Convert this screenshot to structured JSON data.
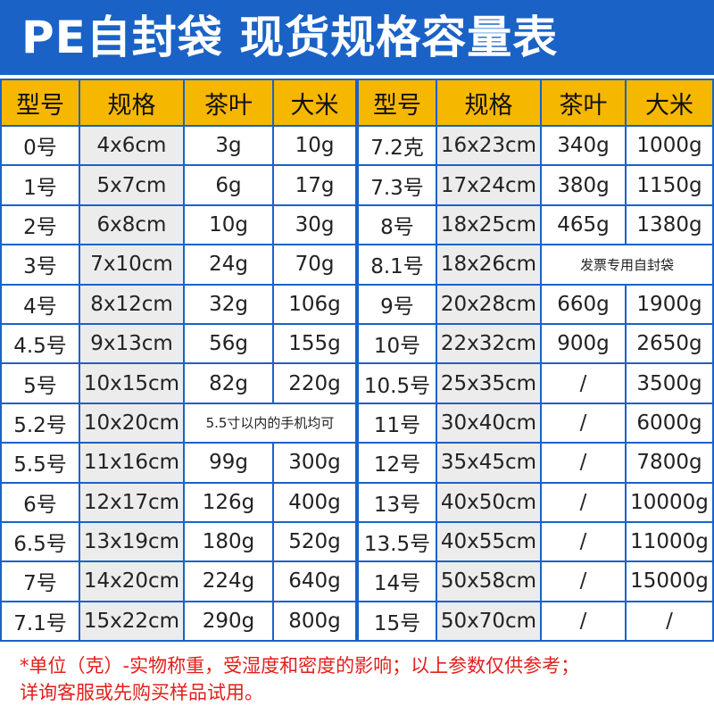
{
  "title": "PE自封袋 现货规格容量表",
  "left": {
    "headers": [
      "型号",
      "规格",
      "茶叶",
      "大米"
    ],
    "rows": [
      [
        "0号",
        "4x6cm",
        "3g",
        "10g"
      ],
      [
        "1号",
        "5x7cm",
        "6g",
        "17g"
      ],
      [
        "2号",
        "6x8cm",
        "10g",
        "30g"
      ],
      [
        "3号",
        "7x10cm",
        "24g",
        "70g"
      ],
      [
        "4号",
        "8x12cm",
        "32g",
        "106g"
      ],
      [
        "4.5号",
        "9x13cm",
        "56g",
        "155g"
      ],
      [
        "5号",
        "10x15cm",
        "82g",
        "220g"
      ],
      [
        "5.2号",
        "10x20cm",
        "5.5寸以内的手机均可"
      ],
      [
        "5.5号",
        "11x16cm",
        "99g",
        "300g"
      ],
      [
        "6号",
        "12x17cm",
        "126g",
        "400g"
      ],
      [
        "6.5号",
        "13x19cm",
        "180g",
        "520g"
      ],
      [
        "7号",
        "14x20cm",
        "224g",
        "640g"
      ],
      [
        "7.1号",
        "15x22cm",
        "290g",
        "800g"
      ]
    ]
  },
  "right": {
    "headers": [
      "型号",
      "规格",
      "茶叶",
      "大米"
    ],
    "rows": [
      [
        "7.2克",
        "16x23cm",
        "340g",
        "1000g"
      ],
      [
        "7.3号",
        "17x24cm",
        "380g",
        "1150g"
      ],
      [
        "8号",
        "18x25cm",
        "465g",
        "1380g"
      ],
      [
        "8.1号",
        "18x26cm",
        "发票专用自封袋"
      ],
      [
        "9号",
        "20x28cm",
        "660g",
        "1900g"
      ],
      [
        "10号",
        "22x32cm",
        "900g",
        "2650g"
      ],
      [
        "10.5号",
        "25x35cm",
        "/",
        "3500g"
      ],
      [
        "11号",
        "30x40cm",
        "/",
        "6000g"
      ],
      [
        "12号",
        "35x45cm",
        "/",
        "7800g"
      ],
      [
        "13号",
        "40x50cm",
        "/",
        "10000g"
      ],
      [
        "13.5号",
        "40x55cm",
        "/",
        "11000g"
      ],
      [
        "14号",
        "50x58cm",
        "/",
        "15000g"
      ],
      [
        "15号",
        "50x70cm",
        "/",
        "/"
      ]
    ]
  },
  "footer": [
    "*单位（克）-实物称重，受湿度和密度的影响；以上参数仅供参考；",
    "详询客服或先购买样品试用。"
  ]
}
